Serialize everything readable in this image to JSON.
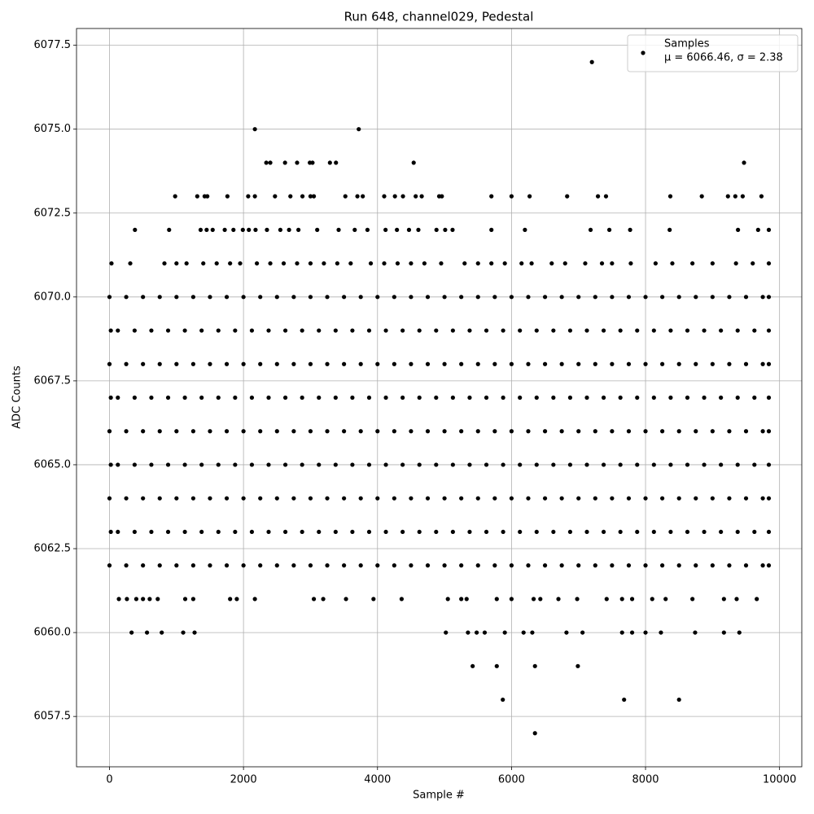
{
  "chart_data": {
    "type": "scatter",
    "title": "Run 648, channel029, Pedestal",
    "x_label": "Sample #",
    "y_label": "ADC Counts",
    "xlim": [
      -492,
      10332
    ],
    "ylim": [
      6056,
      6078
    ],
    "xticks": [
      0,
      2000,
      4000,
      6000,
      8000,
      10000
    ],
    "yticks": [
      6057.5,
      {
        "value": 6060,
        "label": "6060.0"
      },
      6062.5,
      {
        "value": 6065,
        "label": "6065.0"
      },
      6067.5,
      {
        "value": 6070,
        "label": "6070.0"
      },
      6072.5,
      {
        "value": 6075,
        "label": "6075.0"
      },
      6077.5
    ],
    "grid": true,
    "legend_position": "upper right",
    "annotation": "μ = 6066.46, σ = 2.38",
    "x": [
      7200,
      2170,
      3720,
      4540,
      9470,
      2340,
      2400,
      2620,
      2800,
      2990,
      3030,
      3290,
      3380,
      5420,
      5780,
      6350,
      6990,
      5870,
      7680,
      8500,
      6350,
      980,
      1310,
      1420,
      1460,
      1760,
      2070,
      2170,
      2470,
      2700,
      2880,
      3000,
      3050,
      3520,
      3700,
      3780,
      4100,
      4260,
      4380,
      4570,
      4660,
      4920,
      4960,
      5700,
      6000,
      6270,
      6830,
      7290,
      7410,
      8370,
      8840,
      9230,
      9340,
      9450,
      9730,
      380,
      890,
      1360,
      1450,
      1540,
      1720,
      1850,
      1990,
      2080,
      2180,
      2350,
      2550,
      2680,
      2820,
      3100,
      3420,
      3660,
      3850,
      4120,
      4290,
      4470,
      4610,
      4880,
      5010,
      5120,
      5700,
      6200,
      7180,
      7460,
      7770,
      8360,
      9380,
      9680,
      9840,
      30,
      310,
      820,
      1000,
      1150,
      1400,
      1600,
      1800,
      1950,
      2200,
      2400,
      2600,
      2800,
      3000,
      3200,
      3400,
      3600,
      3900,
      4100,
      4300,
      4500,
      4700,
      4950,
      5300,
      5500,
      5700,
      5900,
      6150,
      6300,
      6600,
      6800,
      7100,
      7350,
      7500,
      7780,
      8150,
      8400,
      8700,
      9000,
      9350,
      9600,
      9840,
      140,
      260,
      400,
      500,
      600,
      720,
      1130,
      1250,
      1800,
      1900,
      2170,
      3050,
      3190,
      3530,
      3940,
      4360,
      5050,
      5250,
      5330,
      5780,
      6000,
      6330,
      6430,
      6700,
      6980,
      7420,
      7650,
      7800,
      8100,
      8300,
      8700,
      9170,
      9360,
      9660,
      330,
      560,
      780,
      1100,
      1270,
      5020,
      5350,
      5480,
      5600,
      5900,
      6180,
      6310,
      6820,
      7060,
      7650,
      7800,
      8000,
      8230,
      8740,
      9170,
      9400,
      0,
      250,
      500,
      750,
      1000,
      1250,
      1500,
      1750,
      2000,
      2250,
      2500,
      2750,
      3000,
      3250,
      3500,
      3750,
      4000,
      4250,
      4500,
      4750,
      5000,
      5250,
      5500,
      5750,
      6000,
      6250,
      6500,
      6750,
      7000,
      7250,
      7500,
      7750,
      8000,
      8250,
      8500,
      8750,
      9000,
      9250,
      9500,
      9750,
      9840,
      20,
      125,
      375,
      625,
      875,
      1125,
      1375,
      1625,
      1875,
      2125,
      2375,
      2625,
      2875,
      3125,
      3375,
      3625,
      3875,
      4125,
      4375,
      4625,
      4875,
      5125,
      5375,
      5625,
      5875,
      6125,
      6375,
      6625,
      6875,
      7125,
      7375,
      7625,
      7875,
      8125,
      8375,
      8625,
      8875,
      9125,
      9375,
      9625,
      9840,
      0,
      250,
      500,
      750,
      1000,
      1250,
      1500,
      1750,
      2000,
      2250,
      2500,
      2750,
      3000,
      3250,
      3500,
      3750,
      4000,
      4250,
      4500,
      4750,
      5000,
      5250,
      5500,
      5750,
      6000,
      6250,
      6500,
      6750,
      7000,
      7250,
      7500,
      7750,
      8000,
      8250,
      8500,
      8750,
      9000,
      9250,
      9500,
      9750,
      9840,
      20,
      125,
      375,
      625,
      875,
      1125,
      1375,
      1625,
      1875,
      2125,
      2375,
      2625,
      2875,
      3125,
      3375,
      3625,
      3875,
      4125,
      4375,
      4625,
      4875,
      5125,
      5375,
      5625,
      5875,
      6125,
      6375,
      6625,
      6875,
      7125,
      7375,
      7625,
      7875,
      8125,
      8375,
      8625,
      8875,
      9125,
      9375,
      9625,
      9840,
      0,
      250,
      500,
      750,
      1000,
      1250,
      1500,
      1750,
      2000,
      2250,
      2500,
      2750,
      3000,
      3250,
      3500,
      3750,
      4000,
      4250,
      4500,
      4750,
      5000,
      5250,
      5500,
      5750,
      6000,
      6250,
      6500,
      6750,
      7000,
      7250,
      7500,
      7750,
      8000,
      8250,
      8500,
      8750,
      9000,
      9250,
      9500,
      9750,
      9840,
      20,
      125,
      375,
      625,
      875,
      1125,
      1375,
      1625,
      1875,
      2125,
      2375,
      2625,
      2875,
      3125,
      3375,
      3625,
      3875,
      4125,
      4375,
      4625,
      4875,
      5125,
      5375,
      5625,
      5875,
      6125,
      6375,
      6625,
      6875,
      7125,
      7375,
      7625,
      7875,
      8125,
      8375,
      8625,
      8875,
      9125,
      9375,
      9625,
      9840,
      0,
      250,
      500,
      750,
      1000,
      1250,
      1500,
      1750,
      2000,
      2250,
      2500,
      2750,
      3000,
      3250,
      3500,
      3750,
      4000,
      4250,
      4500,
      4750,
      5000,
      5250,
      5500,
      5750,
      6000,
      6250,
      6500,
      6750,
      7000,
      7250,
      7500,
      7750,
      8000,
      8250,
      8500,
      8750,
      9000,
      9250,
      9500,
      9750,
      9840,
      20,
      125,
      375,
      625,
      875,
      1125,
      1375,
      1625,
      1875,
      2125,
      2375,
      2625,
      2875,
      3125,
      3375,
      3625,
      3875,
      4125,
      4375,
      4625,
      4875,
      5125,
      5375,
      5625,
      5875,
      6125,
      6375,
      6625,
      6875,
      7125,
      7375,
      7625,
      7875,
      8125,
      8375,
      8625,
      8875,
      9125,
      9375,
      9625,
      9840,
      0,
      250,
      500,
      750,
      1000,
      1250,
      1500,
      1750,
      2000,
      2250,
      2500,
      2750,
      3000,
      3250,
      3500,
      3750,
      4000,
      4250,
      4500,
      4750,
      5000,
      5250,
      5500,
      5750,
      6000,
      6250,
      6500,
      6750,
      7000,
      7250,
      7500,
      7750,
      8000,
      8250,
      8500,
      8750,
      9000,
      9250,
      9500,
      9750,
      9840
    ],
    "series": [
      {
        "name": "Samples",
        "color": "#000000",
        "values": [
          6077,
          6075,
          6075,
          6074,
          6074,
          6074,
          6074,
          6074,
          6074,
          6074,
          6074,
          6074,
          6074,
          6059,
          6059,
          6059,
          6059,
          6058,
          6058,
          6058,
          6057,
          6073,
          6073,
          6073,
          6073,
          6073,
          6073,
          6073,
          6073,
          6073,
          6073,
          6073,
          6073,
          6073,
          6073,
          6073,
          6073,
          6073,
          6073,
          6073,
          6073,
          6073,
          6073,
          6073,
          6073,
          6073,
          6073,
          6073,
          6073,
          6073,
          6073,
          6073,
          6073,
          6073,
          6073,
          6072,
          6072,
          6072,
          6072,
          6072,
          6072,
          6072,
          6072,
          6072,
          6072,
          6072,
          6072,
          6072,
          6072,
          6072,
          6072,
          6072,
          6072,
          6072,
          6072,
          6072,
          6072,
          6072,
          6072,
          6072,
          6072,
          6072,
          6072,
          6072,
          6072,
          6072,
          6072,
          6072,
          6072,
          6071,
          6071,
          6071,
          6071,
          6071,
          6071,
          6071,
          6071,
          6071,
          6071,
          6071,
          6071,
          6071,
          6071,
          6071,
          6071,
          6071,
          6071,
          6071,
          6071,
          6071,
          6071,
          6071,
          6071,
          6071,
          6071,
          6071,
          6071,
          6071,
          6071,
          6071,
          6071,
          6071,
          6071,
          6071,
          6071,
          6071,
          6071,
          6071,
          6071,
          6071,
          6071,
          6061,
          6061,
          6061,
          6061,
          6061,
          6061,
          6061,
          6061,
          6061,
          6061,
          6061,
          6061,
          6061,
          6061,
          6061,
          6061,
          6061,
          6061,
          6061,
          6061,
          6061,
          6061,
          6061,
          6061,
          6061,
          6061,
          6061,
          6061,
          6061,
          6061,
          6061,
          6061,
          6061,
          6061,
          6060,
          6060,
          6060,
          6060,
          6060,
          6060,
          6060,
          6060,
          6060,
          6060,
          6060,
          6060,
          6060,
          6060,
          6060,
          6060,
          6060,
          6060,
          6060,
          6060,
          6060,
          6070,
          6070,
          6070,
          6070,
          6070,
          6070,
          6070,
          6070,
          6070,
          6070,
          6070,
          6070,
          6070,
          6070,
          6070,
          6070,
          6070,
          6070,
          6070,
          6070,
          6070,
          6070,
          6070,
          6070,
          6070,
          6070,
          6070,
          6070,
          6070,
          6070,
          6070,
          6070,
          6070,
          6070,
          6070,
          6070,
          6070,
          6070,
          6070,
          6070,
          6070,
          6069,
          6069,
          6069,
          6069,
          6069,
          6069,
          6069,
          6069,
          6069,
          6069,
          6069,
          6069,
          6069,
          6069,
          6069,
          6069,
          6069,
          6069,
          6069,
          6069,
          6069,
          6069,
          6069,
          6069,
          6069,
          6069,
          6069,
          6069,
          6069,
          6069,
          6069,
          6069,
          6069,
          6069,
          6069,
          6069,
          6069,
          6069,
          6069,
          6069,
          6069,
          6068,
          6068,
          6068,
          6068,
          6068,
          6068,
          6068,
          6068,
          6068,
          6068,
          6068,
          6068,
          6068,
          6068,
          6068,
          6068,
          6068,
          6068,
          6068,
          6068,
          6068,
          6068,
          6068,
          6068,
          6068,
          6068,
          6068,
          6068,
          6068,
          6068,
          6068,
          6068,
          6068,
          6068,
          6068,
          6068,
          6068,
          6068,
          6068,
          6068,
          6068,
          6067,
          6067,
          6067,
          6067,
          6067,
          6067,
          6067,
          6067,
          6067,
          6067,
          6067,
          6067,
          6067,
          6067,
          6067,
          6067,
          6067,
          6067,
          6067,
          6067,
          6067,
          6067,
          6067,
          6067,
          6067,
          6067,
          6067,
          6067,
          6067,
          6067,
          6067,
          6067,
          6067,
          6067,
          6067,
          6067,
          6067,
          6067,
          6067,
          6067,
          6067,
          6066,
          6066,
          6066,
          6066,
          6066,
          6066,
          6066,
          6066,
          6066,
          6066,
          6066,
          6066,
          6066,
          6066,
          6066,
          6066,
          6066,
          6066,
          6066,
          6066,
          6066,
          6066,
          6066,
          6066,
          6066,
          6066,
          6066,
          6066,
          6066,
          6066,
          6066,
          6066,
          6066,
          6066,
          6066,
          6066,
          6066,
          6066,
          6066,
          6066,
          6066,
          6065,
          6065,
          6065,
          6065,
          6065,
          6065,
          6065,
          6065,
          6065,
          6065,
          6065,
          6065,
          6065,
          6065,
          6065,
          6065,
          6065,
          6065,
          6065,
          6065,
          6065,
          6065,
          6065,
          6065,
          6065,
          6065,
          6065,
          6065,
          6065,
          6065,
          6065,
          6065,
          6065,
          6065,
          6065,
          6065,
          6065,
          6065,
          6065,
          6065,
          6065,
          6064,
          6064,
          6064,
          6064,
          6064,
          6064,
          6064,
          6064,
          6064,
          6064,
          6064,
          6064,
          6064,
          6064,
          6064,
          6064,
          6064,
          6064,
          6064,
          6064,
          6064,
          6064,
          6064,
          6064,
          6064,
          6064,
          6064,
          6064,
          6064,
          6064,
          6064,
          6064,
          6064,
          6064,
          6064,
          6064,
          6064,
          6064,
          6064,
          6064,
          6064,
          6063,
          6063,
          6063,
          6063,
          6063,
          6063,
          6063,
          6063,
          6063,
          6063,
          6063,
          6063,
          6063,
          6063,
          6063,
          6063,
          6063,
          6063,
          6063,
          6063,
          6063,
          6063,
          6063,
          6063,
          6063,
          6063,
          6063,
          6063,
          6063,
          6063,
          6063,
          6063,
          6063,
          6063,
          6063,
          6063,
          6063,
          6063,
          6063,
          6063,
          6063,
          6062,
          6062,
          6062,
          6062,
          6062,
          6062,
          6062,
          6062,
          6062,
          6062,
          6062,
          6062,
          6062,
          6062,
          6062,
          6062,
          6062,
          6062,
          6062,
          6062,
          6062,
          6062,
          6062,
          6062,
          6062,
          6062,
          6062,
          6062,
          6062,
          6062,
          6062,
          6062,
          6062,
          6062,
          6062,
          6062,
          6062,
          6062,
          6062,
          6062,
          6062
        ]
      }
    ]
  }
}
